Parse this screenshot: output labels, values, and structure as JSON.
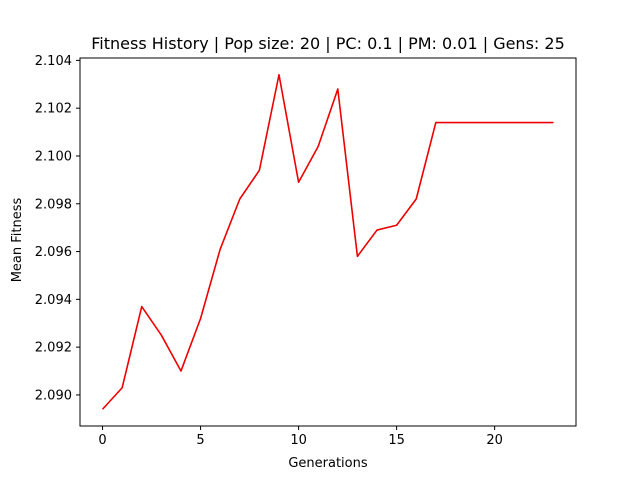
{
  "chart_data": {
    "type": "line",
    "title": "Fitness History | Pop size: 20 | PC: 0.1 | PM: 0.01 | Gens: 25",
    "xlabel": "Generations",
    "ylabel": "Mean Fitness",
    "xlim": [
      -1.15,
      24.15
    ],
    "ylim": [
      2.0887,
      2.1041
    ],
    "xticks": [
      0,
      5,
      10,
      15,
      20
    ],
    "yticks": [
      2.09,
      2.092,
      2.094,
      2.096,
      2.098,
      2.1,
      2.102,
      2.104
    ],
    "grid": false,
    "series": [
      {
        "color": "#ee0000",
        "x": [
          0,
          1,
          2,
          3,
          4,
          5,
          6,
          7,
          8,
          9,
          10,
          11,
          12,
          13,
          14,
          15,
          16,
          17,
          18,
          19,
          20,
          21,
          22,
          23
        ],
        "y": [
          2.0894,
          2.0903,
          2.0937,
          2.0925,
          2.091,
          2.0932,
          2.0961,
          2.0982,
          2.0994,
          2.1034,
          2.0989,
          2.1004,
          2.1028,
          2.0958,
          2.0969,
          2.0971,
          2.0982,
          2.1014,
          2.1014,
          2.1014,
          2.1014,
          2.1014,
          2.1014,
          2.1014
        ]
      }
    ]
  }
}
